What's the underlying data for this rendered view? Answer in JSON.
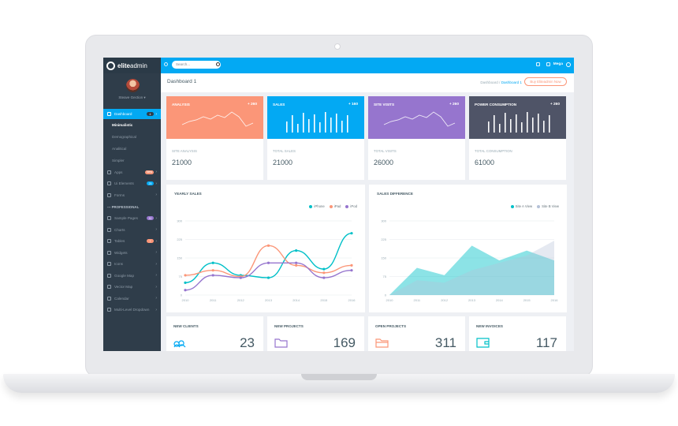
{
  "app": {
    "logo_bold": "elite",
    "logo_light": "admin",
    "user_name": "Steave Gection ▾",
    "colors": {
      "accent": "#03a9f3",
      "sidebar": "#2f3d4a",
      "orange": "#fb9678",
      "purple": "#9675ce",
      "dark": "#4f5467",
      "teal": "#01c0c8"
    }
  },
  "topbar": {
    "search_placeholder": "Search...",
    "user": "Mega",
    "icons": [
      "hamburger-icon",
      "search-icon",
      "mail-icon",
      "bell-icon",
      "settings-icon"
    ]
  },
  "page": {
    "title": "Dashboard 1",
    "breadcrumb_home": "Dashboard",
    "breadcrumb_sep": "/",
    "breadcrumb_current": "Dashboard 1",
    "buy_label": "Buy Eliteadmin Now"
  },
  "sidebar": {
    "items": [
      {
        "label": "Dashboard",
        "badge": "4",
        "active": true
      },
      {
        "label": "Minimalistic",
        "sub": true,
        "current": true
      },
      {
        "label": "Demographical",
        "sub": true
      },
      {
        "label": "Analitical",
        "sub": true
      },
      {
        "label": "Simpler",
        "sub": true
      },
      {
        "label": "Apps",
        "badge": "New",
        "badge_color": "#fb9678"
      },
      {
        "label": "Ui Elements",
        "badge": "25",
        "badge_color": "#03a9f3"
      },
      {
        "label": "Forms",
        "caret": true
      },
      {
        "label": "--- PROFESSIONAL",
        "divider": true
      },
      {
        "label": "Sample Pages",
        "badge": "30",
        "badge_color": "#9675ce"
      },
      {
        "label": "Charts",
        "caret": true
      },
      {
        "label": "Tables",
        "badge": "7",
        "badge_color": "#fb9678"
      },
      {
        "label": "Widgets"
      },
      {
        "label": "Icons",
        "caret": true
      },
      {
        "label": "Google Map"
      },
      {
        "label": "Vector Map"
      },
      {
        "label": "Calendar"
      },
      {
        "label": "Multi-Level Dropdown",
        "caret": true
      }
    ]
  },
  "stats": [
    {
      "label": "ANALYSIS",
      "delta": "+ 260",
      "sub": "SITE ANALYSIS",
      "value": "21000",
      "color": "#fb9678",
      "kind": "line"
    },
    {
      "label": "SALES",
      "delta": "+ 160",
      "sub": "TOTAL SALES",
      "value": "21000",
      "color": "#03a9f3",
      "kind": "bar"
    },
    {
      "label": "SITE VISITS",
      "delta": "+ 260",
      "sub": "TOTAL VISITS",
      "value": "26000",
      "color": "#9675ce",
      "kind": "line"
    },
    {
      "label": "POWER CONSUMPTION",
      "delta": "+ 260",
      "sub": "TOTAL CONSUMPTION",
      "value": "61000",
      "color": "#4f5467",
      "kind": "bar"
    }
  ],
  "bottom_cards": [
    {
      "label": "NEW CLIENTS",
      "value": "23",
      "icon": "user-group-icon",
      "color": "#03a9f3"
    },
    {
      "label": "NEW PROJECTS",
      "value": "169",
      "icon": "folder-icon",
      "color": "#9675ce"
    },
    {
      "label": "OPEN PROJECTS",
      "value": "311",
      "icon": "open-folder-icon",
      "color": "#fb9678"
    },
    {
      "label": "NEW INVOICES",
      "value": "117",
      "icon": "wallet-icon",
      "color": "#01c0c8"
    }
  ],
  "chart_data": [
    {
      "type": "line",
      "title": "YEARLY SALES",
      "x": [
        "2010",
        "2011",
        "2012",
        "2013",
        "2014",
        "2015",
        "2016"
      ],
      "ylim": [
        0,
        300
      ],
      "yticks": [
        "0",
        "75",
        "150",
        "225",
        "300"
      ],
      "series": [
        {
          "name": "iPhone",
          "color": "#01c0c8",
          "values": [
            50,
            130,
            80,
            70,
            180,
            105,
            250
          ]
        },
        {
          "name": "iPad",
          "color": "#fb9678",
          "values": [
            80,
            100,
            75,
            200,
            120,
            90,
            120
          ]
        },
        {
          "name": "iPod",
          "color": "#9675ce",
          "values": [
            20,
            80,
            70,
            130,
            130,
            70,
            100
          ]
        }
      ]
    },
    {
      "type": "area",
      "title": "SALES DIFFERENCE",
      "x": [
        "2010",
        "2011",
        "2012",
        "2013",
        "2014",
        "2015",
        "2016"
      ],
      "ylim": [
        0,
        300
      ],
      "yticks": [
        "0",
        "75",
        "150",
        "225",
        "300"
      ],
      "series": [
        {
          "name": "Site A View",
          "color": "#01c0c8",
          "values": [
            0,
            110,
            80,
            200,
            140,
            180,
            140
          ]
        },
        {
          "name": "Site B View",
          "color": "#b4c1d7",
          "values": [
            0,
            60,
            50,
            100,
            130,
            160,
            220
          ]
        }
      ]
    }
  ]
}
